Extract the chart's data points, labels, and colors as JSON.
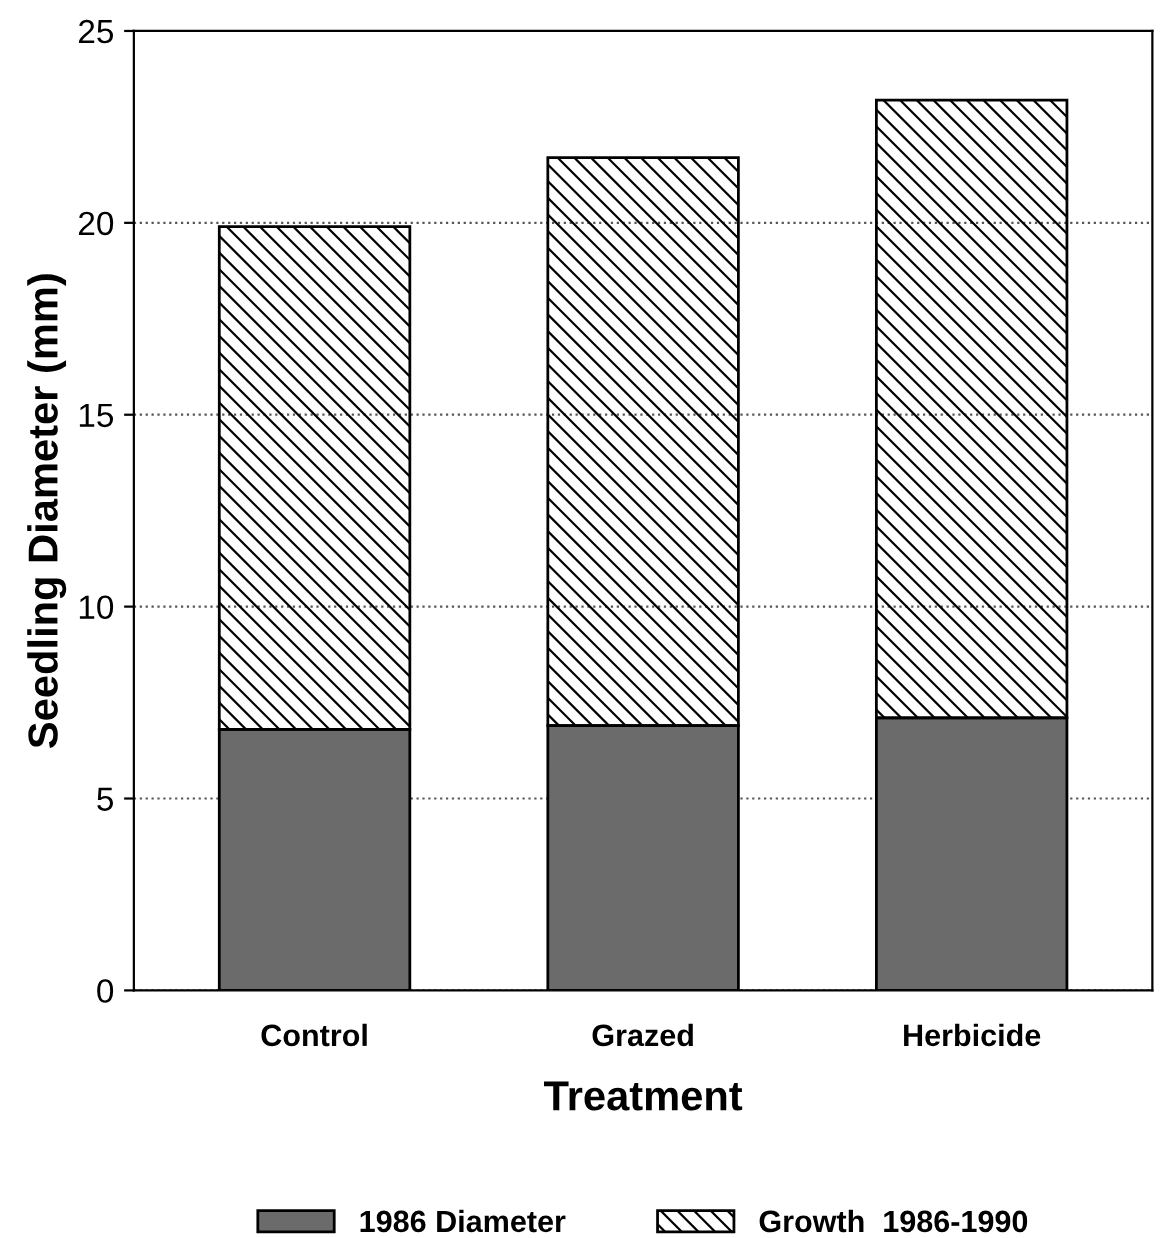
{
  "chart_data": {
    "type": "bar",
    "stacked": true,
    "xlabel": "Treatment",
    "ylabel": "Seedling Diameter (mm)",
    "categories": [
      "Control",
      "Grazed",
      "Herbicide"
    ],
    "series": [
      {
        "name": "1986 Diameter",
        "color": "#6b6b6b",
        "values": [
          6.8,
          6.9,
          7.1
        ]
      },
      {
        "name": "Growth  1986-1990",
        "color": "#000000",
        "values": [
          13.1,
          14.8,
          16.1
        ]
      }
    ],
    "ylim": [
      0,
      25
    ],
    "yticks": [
      0,
      5,
      10,
      15,
      20,
      25
    ],
    "grid": "y",
    "legend": "bottom"
  }
}
